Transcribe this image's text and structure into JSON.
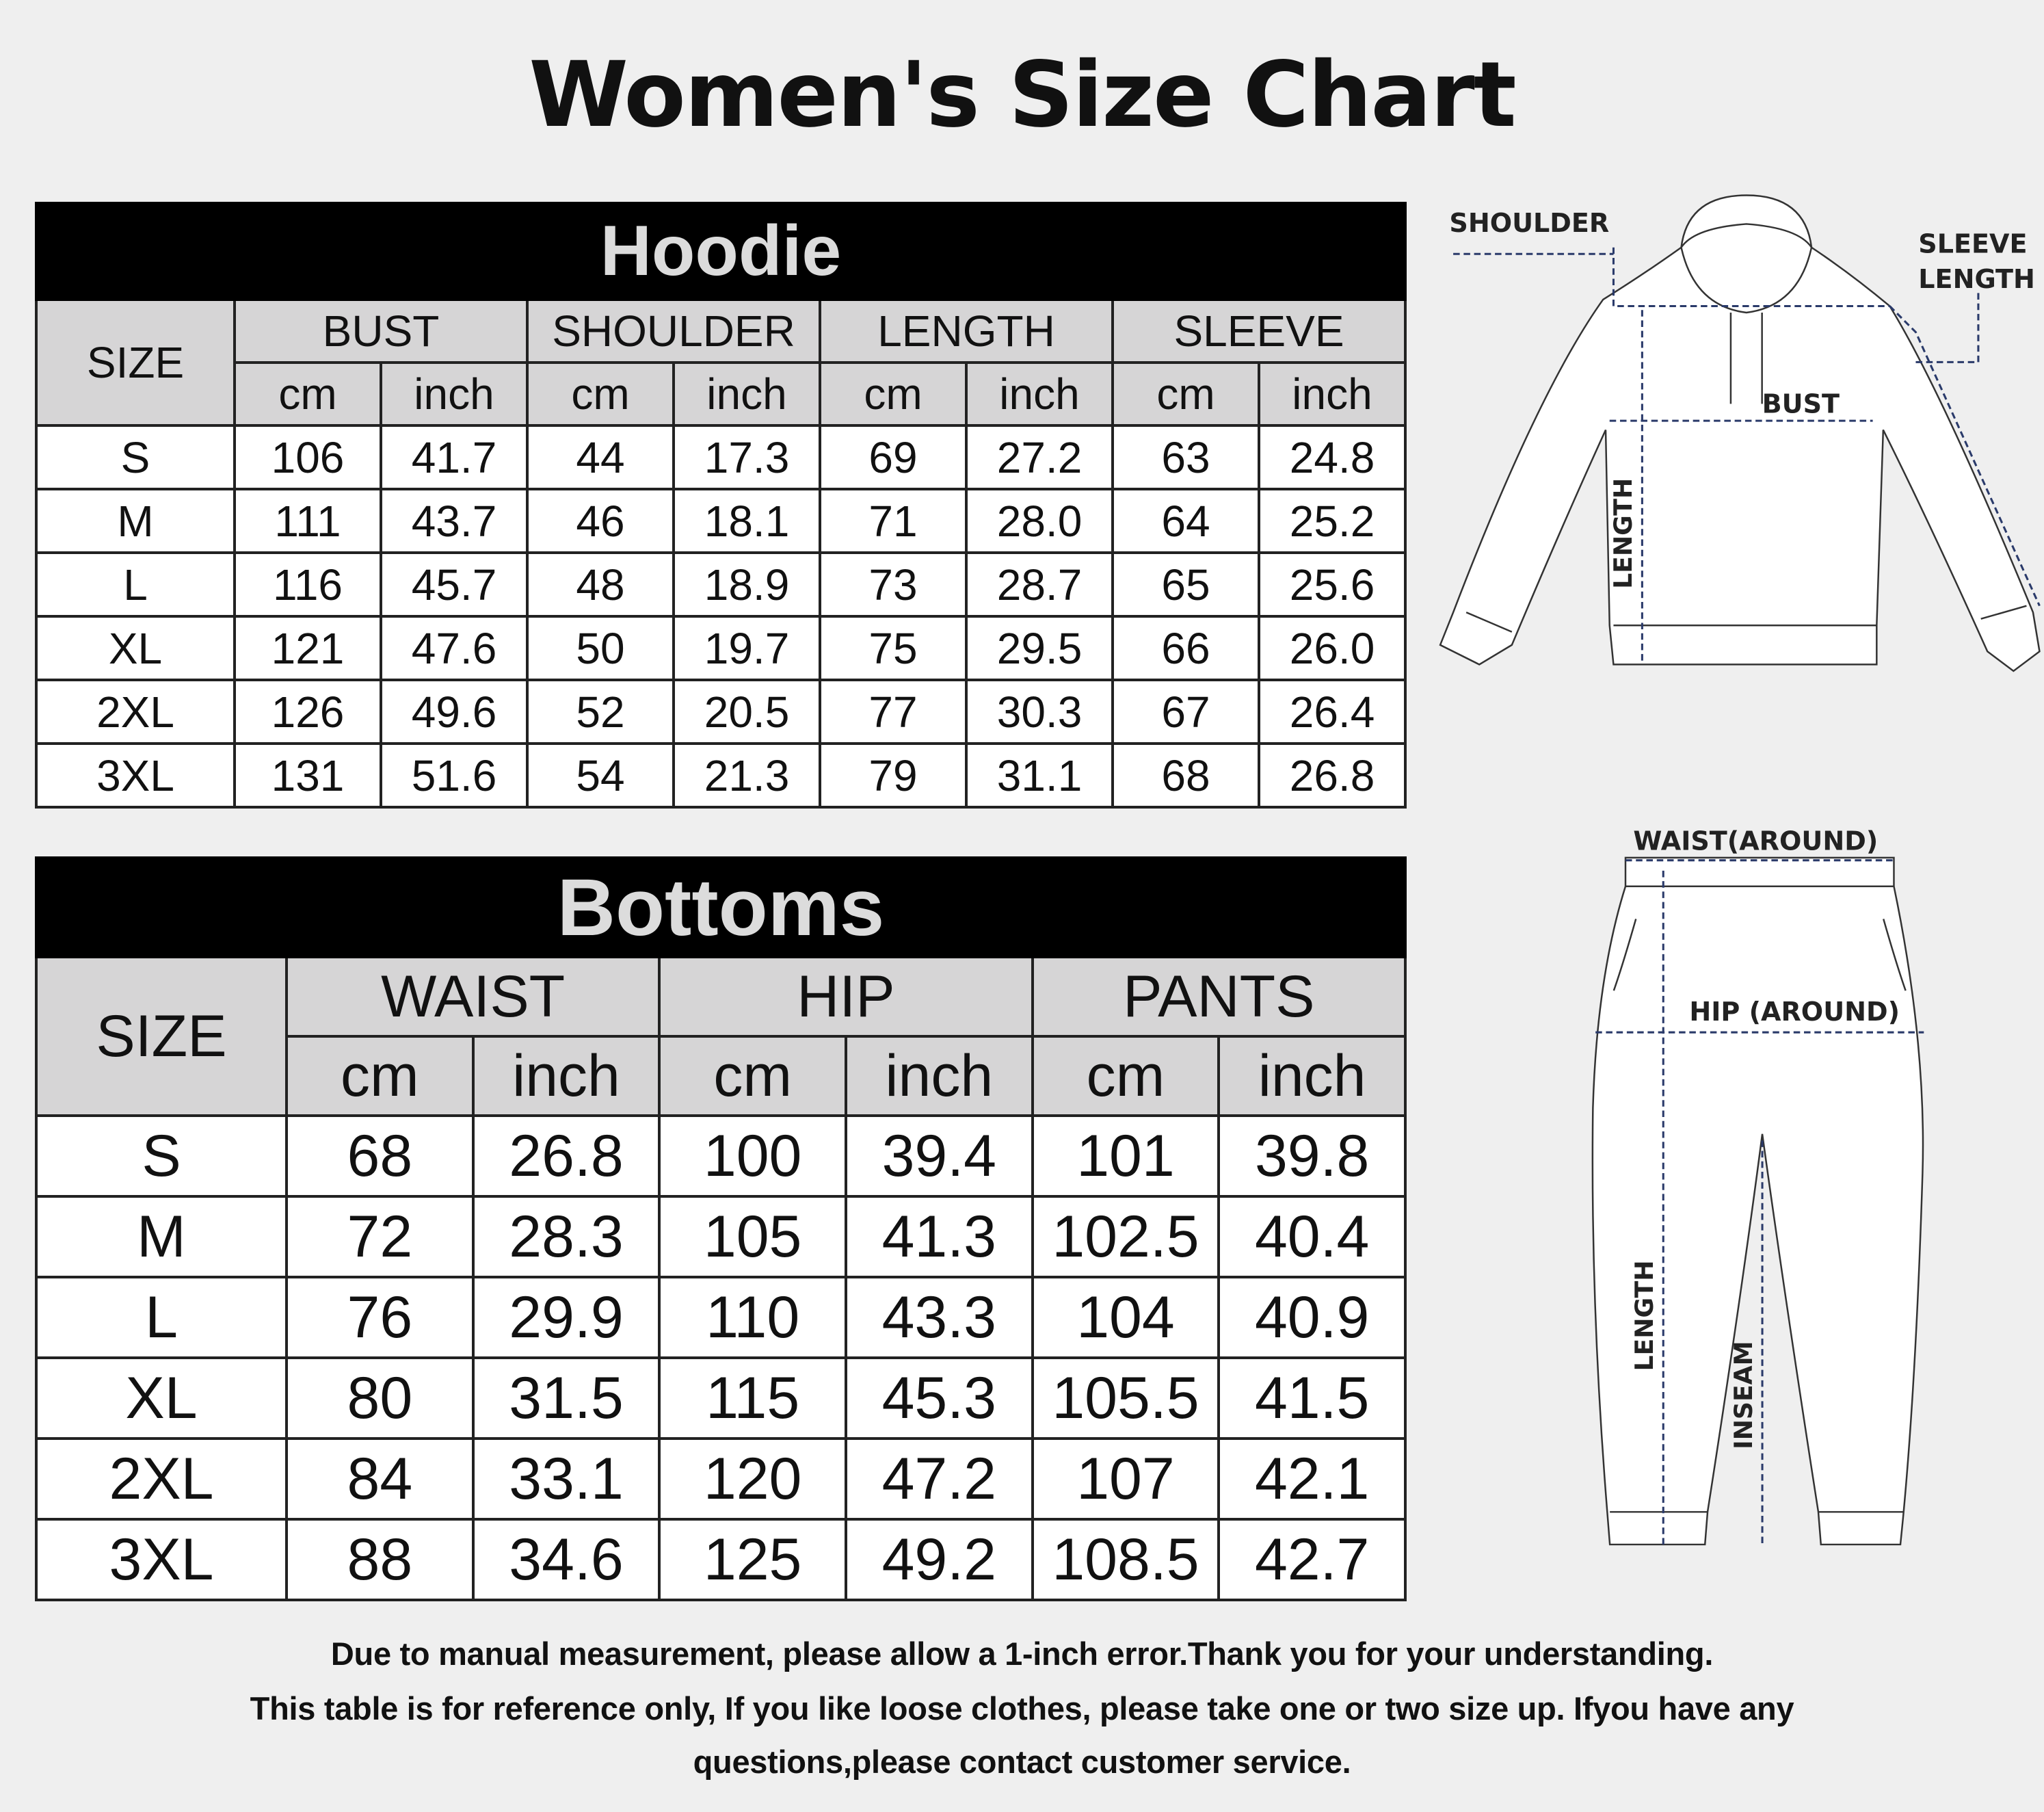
{
  "title": "Women's Size Chart",
  "hoodie": {
    "caption": "Hoodie",
    "size_label": "SIZE",
    "groups": [
      "BUST",
      "SHOULDER",
      "LENGTH",
      "SLEEVE"
    ],
    "units": [
      "cm",
      "inch"
    ],
    "rows": [
      [
        "S",
        "106",
        "41.7",
        "44",
        "17.3",
        "69",
        "27.2",
        "63",
        "24.8"
      ],
      [
        "M",
        "111",
        "43.7",
        "46",
        "18.1",
        "71",
        "28.0",
        "64",
        "25.2"
      ],
      [
        "L",
        "116",
        "45.7",
        "48",
        "18.9",
        "73",
        "28.7",
        "65",
        "25.6"
      ],
      [
        "XL",
        "121",
        "47.6",
        "50",
        "19.7",
        "75",
        "29.5",
        "66",
        "26.0"
      ],
      [
        "2XL",
        "126",
        "49.6",
        "52",
        "20.5",
        "77",
        "30.3",
        "67",
        "26.4"
      ],
      [
        "3XL",
        "131",
        "51.6",
        "54",
        "21.3",
        "79",
        "31.1",
        "68",
        "26.8"
      ]
    ]
  },
  "bottoms": {
    "caption": "Bottoms",
    "size_label": "SIZE",
    "groups": [
      "WAIST",
      "HIP",
      "PANTS"
    ],
    "units": [
      "cm",
      "inch"
    ],
    "rows": [
      [
        "S",
        "68",
        "26.8",
        "100",
        "39.4",
        "101",
        "39.8"
      ],
      [
        "M",
        "72",
        "28.3",
        "105",
        "41.3",
        "102.5",
        "40.4"
      ],
      [
        "L",
        "76",
        "29.9",
        "110",
        "43.3",
        "104",
        "40.9"
      ],
      [
        "XL",
        "80",
        "31.5",
        "115",
        "45.3",
        "105.5",
        "41.5"
      ],
      [
        "2XL",
        "84",
        "33.1",
        "120",
        "47.2",
        "107",
        "42.1"
      ],
      [
        "3XL",
        "88",
        "34.6",
        "125",
        "49.2",
        "108.5",
        "42.7"
      ]
    ]
  },
  "hoodie_diagram": {
    "shoulder": "SHOULDER",
    "sleeve_length": [
      "SLEEVE",
      "LENGTH"
    ],
    "bust": "BUST",
    "length": "LENGTH"
  },
  "pants_diagram": {
    "waist": "WAIST(AROUND)",
    "hip": "HIP (AROUND)",
    "length": "LENGTH",
    "inseam": "INSEAM"
  },
  "footer": [
    "Due to manual measurement, please allow a 1-inch error.Thank you for your understanding.",
    "This table is for reference only, If you like loose clothes, please take one or two size up. Ifyou have any",
    "questions,please contact customer service."
  ],
  "colors": {
    "header_bg": "#000000",
    "header_text": "#dcdcdc",
    "subheader_bg": "#d6d5d6",
    "dash": "#2a3a6a"
  }
}
